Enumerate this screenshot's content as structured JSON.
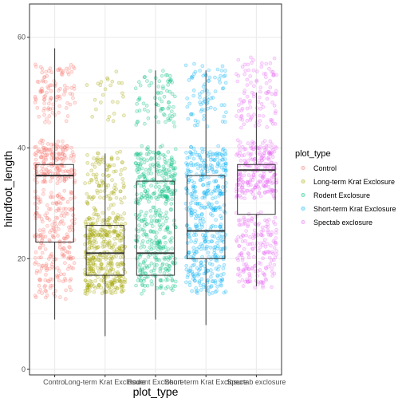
{
  "chart_data": {
    "type": "boxplot",
    "geoms": [
      "boxplot",
      "jitter"
    ],
    "xlabel": "plot_type",
    "ylabel": "hindfoot_length",
    "ylim": [
      -1,
      66
    ],
    "yticks": [
      0,
      20,
      40,
      60
    ],
    "grid": true,
    "legend_title": "plot_type",
    "legend_position": "right",
    "categories": [
      "Control",
      "Long-term Krat Exclosure",
      "Rodent Exclosure",
      "Short-term Krat Exclosure",
      "Spectab exclosure"
    ],
    "series": [
      {
        "name": "Control",
        "color": "#F8766D",
        "min": 9,
        "q1": 23,
        "median": 35,
        "q3": 37,
        "max": 58,
        "bands": [
          [
            13,
            32,
            0.45
          ],
          [
            34,
            41,
            0.35
          ],
          [
            45,
            55,
            0.2
          ]
        ]
      },
      {
        "name": "Long-term Krat Exclosure",
        "color": "#A3A500",
        "min": 6,
        "q1": 17,
        "median": 21,
        "q3": 26,
        "max": 39,
        "bands": [
          [
            14,
            28,
            0.75
          ],
          [
            29,
            39,
            0.2
          ],
          [
            45,
            54,
            0.05
          ]
        ]
      },
      {
        "name": "Rodent Exclosure",
        "color": "#00BF7D",
        "min": 9,
        "q1": 17,
        "median": 21,
        "q3": 34,
        "max": 54,
        "bands": [
          [
            14,
            29,
            0.45
          ],
          [
            30,
            40,
            0.4
          ],
          [
            44,
            54,
            0.15
          ]
        ]
      },
      {
        "name": "Short-term Krat Exclosure",
        "color": "#00B0F6",
        "min": 8,
        "q1": 20,
        "median": 25,
        "q3": 35,
        "max": 54,
        "bands": [
          [
            14,
            30,
            0.5
          ],
          [
            31,
            40,
            0.35
          ],
          [
            44,
            55,
            0.15
          ]
        ]
      },
      {
        "name": "Spectab exclosure",
        "color": "#E76BF3",
        "min": 15,
        "q1": 28,
        "median": 36,
        "q3": 37,
        "max": 50,
        "bands": [
          [
            15,
            28,
            0.35
          ],
          [
            31,
            41,
            0.45
          ],
          [
            44,
            56,
            0.2
          ]
        ]
      }
    ]
  }
}
